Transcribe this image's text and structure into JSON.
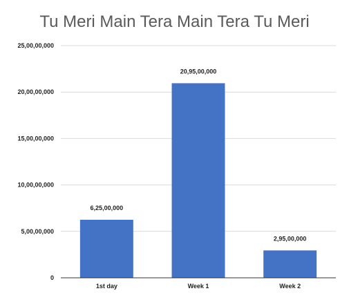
{
  "chart_data": {
    "type": "bar",
    "title": "Tu Meri Main Tera Main Tera Tu Meri",
    "categories": [
      "1st day",
      "Week 1",
      "Week 2"
    ],
    "values": [
      62500000,
      209500000,
      29500000
    ],
    "data_labels": [
      "6,25,00,000",
      "20,95,00,000",
      "2,95,00,000"
    ],
    "ylim": [
      0,
      250000000
    ],
    "y_ticks": [
      {
        "value": 0,
        "label": "0"
      },
      {
        "value": 50000000,
        "label": "5,00,00,000"
      },
      {
        "value": 100000000,
        "label": "10,00,00,000"
      },
      {
        "value": 150000000,
        "label": "15,00,00,000"
      },
      {
        "value": 200000000,
        "label": "20,00,00,000"
      },
      {
        "value": 250000000,
        "label": "25,00,00,000"
      }
    ],
    "bar_color": "#4472C4",
    "grid": true,
    "xlabel": "",
    "ylabel": ""
  }
}
